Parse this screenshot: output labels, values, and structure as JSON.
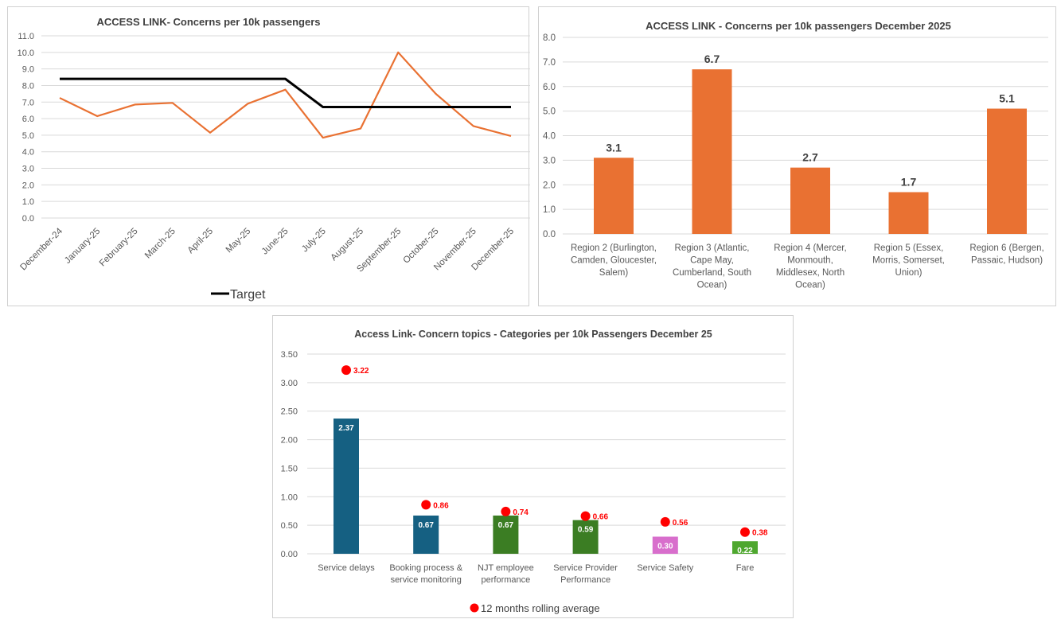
{
  "chart_data": [
    {
      "type": "line",
      "title": "ACCESS LINK- Concerns per 10k passengers",
      "categories": [
        "December-24",
        "January-25",
        "February-25",
        "March-25",
        "April-25",
        "May-25",
        "June-25",
        "July-25",
        "August-25",
        "September-25",
        "October-25",
        "November-25",
        "December-25"
      ],
      "series": [
        {
          "values": [
            7.25,
            6.15,
            6.85,
            6.95,
            5.15,
            6.9,
            7.75,
            4.85,
            5.4,
            10.0,
            7.5,
            5.55,
            4.95
          ],
          "color": "#E97132"
        },
        {
          "name": "Target",
          "values": [
            8.4,
            8.4,
            8.4,
            8.4,
            8.4,
            8.4,
            8.4,
            6.7,
            6.7,
            6.7,
            6.7,
            6.7,
            6.7
          ],
          "color": "#000000"
        }
      ],
      "yticks": [
        "0.0",
        "1.0",
        "2.0",
        "3.0",
        "4.0",
        "5.0",
        "6.0",
        "7.0",
        "8.0",
        "9.0",
        "10.0",
        "11.0"
      ],
      "ylim": [
        0,
        11
      ],
      "grid": true,
      "legend": "bottom"
    },
    {
      "type": "bar",
      "title": "ACCESS LINK - Concerns per 10k passengers December 2025",
      "categories": [
        [
          "Region 2 (Burlington,",
          "Camden, Gloucester,",
          "Salem)"
        ],
        [
          "Region 3 (Atlantic,",
          "Cape May,",
          "Cumberland, South",
          "Ocean)"
        ],
        [
          "Region 4 (Mercer,",
          "Monmouth,",
          "Middlesex, North",
          "Ocean)"
        ],
        [
          "Region 5 (Essex,",
          "Morris, Somerset,",
          "Union)"
        ],
        [
          "Region 6 (Bergen,",
          "Passaic, Hudson)"
        ]
      ],
      "values": [
        3.1,
        6.7,
        2.7,
        1.7,
        5.1
      ],
      "data_labels": [
        "3.1",
        "6.7",
        "2.7",
        "1.7",
        "5.1"
      ],
      "yticks": [
        "0.0",
        "1.0",
        "2.0",
        "3.0",
        "4.0",
        "5.0",
        "6.0",
        "7.0",
        "8.0"
      ],
      "ylim": [
        0,
        8
      ],
      "color": "#E97132",
      "grid": true
    },
    {
      "type": "bar",
      "title": "Access Link- Concern topics - Categories per 10k Passengers December 25",
      "categories": [
        [
          "Service delays"
        ],
        [
          "Booking process &",
          "service monitoring"
        ],
        [
          "NJT employee",
          "performance"
        ],
        [
          "Service Provider",
          "Performance"
        ],
        [
          "Service Safety"
        ],
        [
          "Fare"
        ]
      ],
      "values": [
        2.37,
        0.67,
        0.67,
        0.59,
        0.3,
        0.22
      ],
      "data_labels": [
        "2.37",
        "0.67",
        "0.67",
        "0.59",
        "0.30",
        "0.22"
      ],
      "bar_colors": [
        "#156082",
        "#156082",
        "#3B7D23",
        "#3B7D23",
        "#D86ECC",
        "#4EA72E"
      ],
      "series": [
        {
          "name": "12 months rolling average",
          "type": "scatter",
          "values": [
            3.22,
            0.86,
            0.74,
            0.66,
            0.56,
            0.38
          ],
          "data_labels": [
            "3.22",
            "0.86",
            "0.74",
            "0.66",
            "0.56",
            "0.38"
          ],
          "color": "#FF0000"
        }
      ],
      "yticks": [
        "0.00",
        "0.50",
        "1.00",
        "1.50",
        "2.00",
        "2.50",
        "3.00",
        "3.50"
      ],
      "ylim": [
        0,
        3.5
      ],
      "grid": true,
      "legend": "bottom"
    }
  ]
}
